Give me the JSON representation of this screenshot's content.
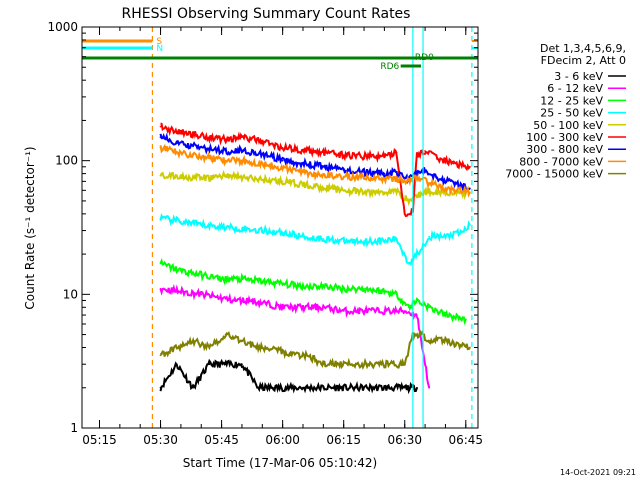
{
  "chart_data": {
    "type": "line",
    "title": "RHESSI Observing Summary Count Rates",
    "xlabel": "Start Time (17-Mar-06 05:10:42)",
    "ylabel": "Count Rate (s⁻¹ detector⁻¹)",
    "y_scale": "log",
    "ylim": [
      1,
      1000
    ],
    "xlim": [
      "05:10:42",
      "06:48:00"
    ],
    "x_ticks": [
      "05:15",
      "05:30",
      "05:45",
      "06:00",
      "06:15",
      "06:30",
      "06:45"
    ],
    "y_ticks": [
      "1",
      "10",
      "100",
      "1000"
    ],
    "footer_date": "14-Oct-2021 09:21",
    "legend": {
      "placement": "right",
      "header": [
        "Det 1,3,4,5,6,9,",
        "FDecim 2, Att 0"
      ]
    },
    "flags": [
      {
        "label": "S",
        "color": "#ff8c00",
        "value": 1
      },
      {
        "label": "N",
        "color": "#00ffff",
        "value": 1
      }
    ],
    "rd_flag": {
      "labels": [
        "RD6",
        "RD0"
      ],
      "color": "#008000"
    },
    "markers": [
      {
        "time": "05:28:00",
        "color": "#ff8c00",
        "style": "dashed"
      },
      {
        "time": "06:32:00",
        "color": "#00ffff",
        "style": "solid"
      },
      {
        "time": "06:34:30",
        "color": "#00ffff",
        "style": "solid"
      },
      {
        "time": "06:46:30",
        "color": "#00ffff",
        "style": "dashed"
      }
    ],
    "series": [
      {
        "name": "3 - 6 keV",
        "color": "#000000",
        "x": [
          "05:30",
          "05:34",
          "05:38",
          "05:42",
          "05:46",
          "05:50",
          "05:54",
          "05:58",
          "06:02",
          "06:06",
          "06:10",
          "06:14",
          "06:18",
          "06:22",
          "06:26",
          "06:30",
          "06:33"
        ],
        "y": [
          2,
          3,
          2,
          3,
          3,
          3,
          2,
          2,
          2,
          2,
          2,
          2,
          2,
          2,
          2,
          2,
          2
        ]
      },
      {
        "name": "6 - 12 keV",
        "color": "#ff00ff",
        "x": [
          "05:30",
          "05:35",
          "05:40",
          "05:44",
          "05:48",
          "05:52",
          "05:56",
          "06:00",
          "06:05",
          "06:10",
          "06:15",
          "06:20",
          "06:25",
          "06:30",
          "06:33",
          "06:36"
        ],
        "y": [
          11,
          10.5,
          10,
          9.5,
          9,
          9,
          8.5,
          8,
          8,
          8,
          7.5,
          7.5,
          7.5,
          7.5,
          7,
          2
        ]
      },
      {
        "name": "12 - 25 keV",
        "color": "#00ff00",
        "x": [
          "05:30",
          "05:35",
          "05:40",
          "05:45",
          "05:50",
          "05:55",
          "06:00",
          "06:05",
          "06:10",
          "06:15",
          "06:20",
          "06:25",
          "06:28",
          "06:31",
          "06:33",
          "06:36",
          "06:40",
          "06:45"
        ],
        "y": [
          17,
          15,
          14,
          13,
          13,
          12.5,
          12,
          11.5,
          11.5,
          11,
          11,
          10.5,
          10,
          8,
          9,
          8,
          7,
          6.5
        ]
      },
      {
        "name": "25 - 50 keV",
        "color": "#00ffff",
        "x": [
          "05:30",
          "05:35",
          "05:40",
          "05:45",
          "05:50",
          "05:55",
          "06:00",
          "06:05",
          "06:10",
          "06:15",
          "06:20",
          "06:25",
          "06:28",
          "06:31",
          "06:33",
          "06:36",
          "06:40",
          "06:44",
          "06:46"
        ],
        "y": [
          37,
          35,
          33,
          32,
          31,
          30,
          29,
          27,
          26,
          25,
          25,
          25,
          26,
          17,
          20,
          27,
          27,
          29,
          33
        ]
      },
      {
        "name": "50 - 100 keV",
        "color": "#cccc00",
        "x": [
          "05:30",
          "05:34",
          "05:38",
          "05:42",
          "05:46",
          "05:50",
          "05:55",
          "06:00",
          "06:05",
          "06:10",
          "06:15",
          "06:20",
          "06:25",
          "06:28",
          "06:31",
          "06:33",
          "06:36",
          "06:40",
          "06:45"
        ],
        "y": [
          78,
          76,
          75,
          74,
          78,
          75,
          72,
          70,
          66,
          63,
          60,
          58,
          58,
          59,
          50,
          55,
          59,
          58,
          57
        ]
      },
      {
        "name": "100 - 300 keV",
        "color": "#ff0000",
        "x": [
          "05:30",
          "05:34",
          "05:38",
          "05:42",
          "05:46",
          "05:50",
          "05:55",
          "06:00",
          "06:05",
          "06:10",
          "06:15",
          "06:20",
          "06:25",
          "06:28",
          "06:30",
          "06:32",
          "06:33",
          "06:35",
          "06:38",
          "06:42",
          "06:46"
        ],
        "y": [
          180,
          165,
          158,
          150,
          145,
          150,
          140,
          125,
          120,
          115,
          110,
          108,
          108,
          115,
          40,
          42,
          110,
          118,
          105,
          95,
          90
        ]
      },
      {
        "name": "300 - 800 keV",
        "color": "#0000ff",
        "x": [
          "05:30",
          "05:34",
          "05:38",
          "05:42",
          "05:46",
          "05:50",
          "05:55",
          "06:00",
          "06:05",
          "06:10",
          "06:15",
          "06:20",
          "06:25",
          "06:28",
          "06:30",
          "06:32",
          "06:33",
          "06:35",
          "06:38",
          "06:42",
          "06:46"
        ],
        "y": [
          150,
          135,
          128,
          122,
          118,
          120,
          112,
          100,
          95,
          90,
          85,
          82,
          80,
          82,
          73,
          78,
          80,
          85,
          75,
          68,
          62
        ]
      },
      {
        "name": "800 - 7000 keV",
        "color": "#ff8c00",
        "x": [
          "05:30",
          "05:34",
          "05:38",
          "05:42",
          "05:46",
          "05:50",
          "05:55",
          "06:00",
          "06:05",
          "06:10",
          "06:15",
          "06:20",
          "06:25",
          "06:28",
          "06:30",
          "06:33",
          "06:36",
          "06:40",
          "06:46"
        ],
        "y": [
          125,
          115,
          110,
          105,
          100,
          100,
          95,
          88,
          82,
          78,
          76,
          75,
          73,
          73,
          70,
          75,
          68,
          62,
          58
        ]
      },
      {
        "name": "7000 - 15000 keV",
        "color": "#808000",
        "x": [
          "05:30",
          "05:34",
          "05:38",
          "05:42",
          "05:46",
          "05:50",
          "05:54",
          "05:58",
          "06:02",
          "06:06",
          "06:10",
          "06:14",
          "06:18",
          "06:22",
          "06:26",
          "06:30",
          "06:32",
          "06:34",
          "06:36",
          "06:40",
          "06:46"
        ],
        "y": [
          3.5,
          4,
          4.5,
          4,
          5,
          4.5,
          4,
          4,
          3.5,
          3.5,
          3,
          3,
          3,
          3,
          3,
          3,
          5,
          5,
          4.5,
          4.5,
          4
        ]
      }
    ]
  }
}
